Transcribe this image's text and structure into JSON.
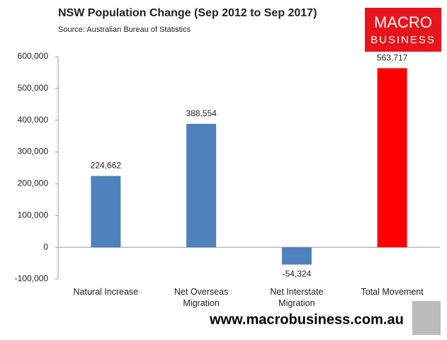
{
  "chart_data": {
    "type": "bar",
    "title": "NSW Population Change (Sep 2012 to Sep 2017)",
    "subtitle": "Source: Australian Bureau of Statistics",
    "categories": [
      "Natural Increase",
      "Net Overseas Migration",
      "Net Interstate Migration",
      "Total Movement"
    ],
    "values": [
      224662,
      388554,
      -54324,
      563717
    ],
    "value_labels": [
      "224,662",
      "388,554",
      "-54,324",
      "563,717"
    ],
    "colors": [
      "#4f81bd",
      "#4f81bd",
      "#4f81bd",
      "#ff0000"
    ],
    "ylim": [
      -100000,
      600000
    ],
    "yticks": [
      {
        "value": -100000,
        "label": "-100,000"
      },
      0,
      {
        "value": 100000,
        "label": "100,000"
      },
      {
        "value": 200000,
        "label": "200,000"
      },
      {
        "value": 300000,
        "label": "300,000"
      },
      {
        "value": 400000,
        "label": "400,000"
      },
      {
        "value": 500000,
        "label": "500,000"
      },
      {
        "value": 600000,
        "label": "600,000"
      }
    ],
    "grid": false,
    "logo": {
      "line1": "MACRO",
      "line2": "BUSINESS"
    },
    "footer": "www.macrobusiness.com.au"
  }
}
